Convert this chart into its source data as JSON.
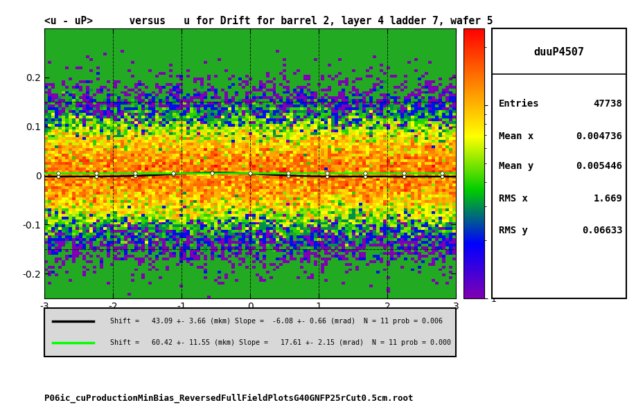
{
  "title": "<u - uP>      versus   u for Drift for barrel 2, layer 4 ladder 7, wafer 5",
  "xlim": [
    -3,
    3
  ],
  "ylim": [
    -0.25,
    0.3
  ],
  "xticks": [
    -3,
    -2,
    -1,
    0,
    1,
    2,
    3
  ],
  "yticks": [
    -0.2,
    -0.1,
    0.0,
    0.1,
    0.2
  ],
  "stats_title": "duuP4507",
  "stats": {
    "Entries": "47738",
    "Mean x": "0.004736",
    "Mean y": "0.005446",
    "RMS x": "1.669",
    "RMS y": "0.06633"
  },
  "legend_line1_text": "   Shift =   43.09 +- 3.66 (mkm) Slope =  -6.08 +- 0.66 (mrad)  N = 11 prob = 0.006",
  "legend_line2_text": "   Shift =   60.42 +- 11.55 (mkm) Slope =   17.61 +- 2.15 (mrad)  N = 11 prob = 0.000",
  "footer_text": "P06ic_cuProductionMinBias_ReversedFullFieldPlotsG40GNFP25rCut0.5cm.root",
  "bg_color": "#ffffff",
  "seed": 42,
  "n_pts": 47738
}
